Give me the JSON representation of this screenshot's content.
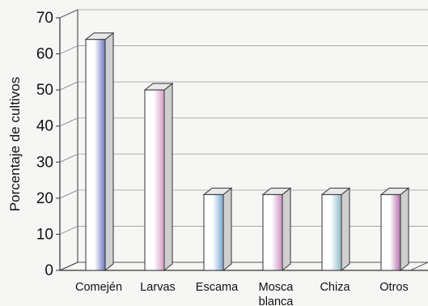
{
  "chart_data": {
    "type": "bar",
    "title": "",
    "xlabel": "",
    "ylabel": "Porcentaje de cultivos",
    "ylim": [
      0,
      70
    ],
    "yticks": [
      "0",
      "10",
      "20",
      "30",
      "40",
      "50",
      "60",
      "70"
    ],
    "categories": [
      "Comején",
      "Larvas",
      "Escama",
      "Mosca blanca",
      "Chiza",
      "Otros"
    ],
    "values": [
      64,
      50,
      21,
      21,
      21,
      21
    ],
    "grid": true,
    "legend": "none",
    "bar_colors": [
      "#6a78c0",
      "#d59bc2",
      "#79a7d2",
      "#c98fbf",
      "#8fb9c8",
      "#b070a8"
    ]
  }
}
